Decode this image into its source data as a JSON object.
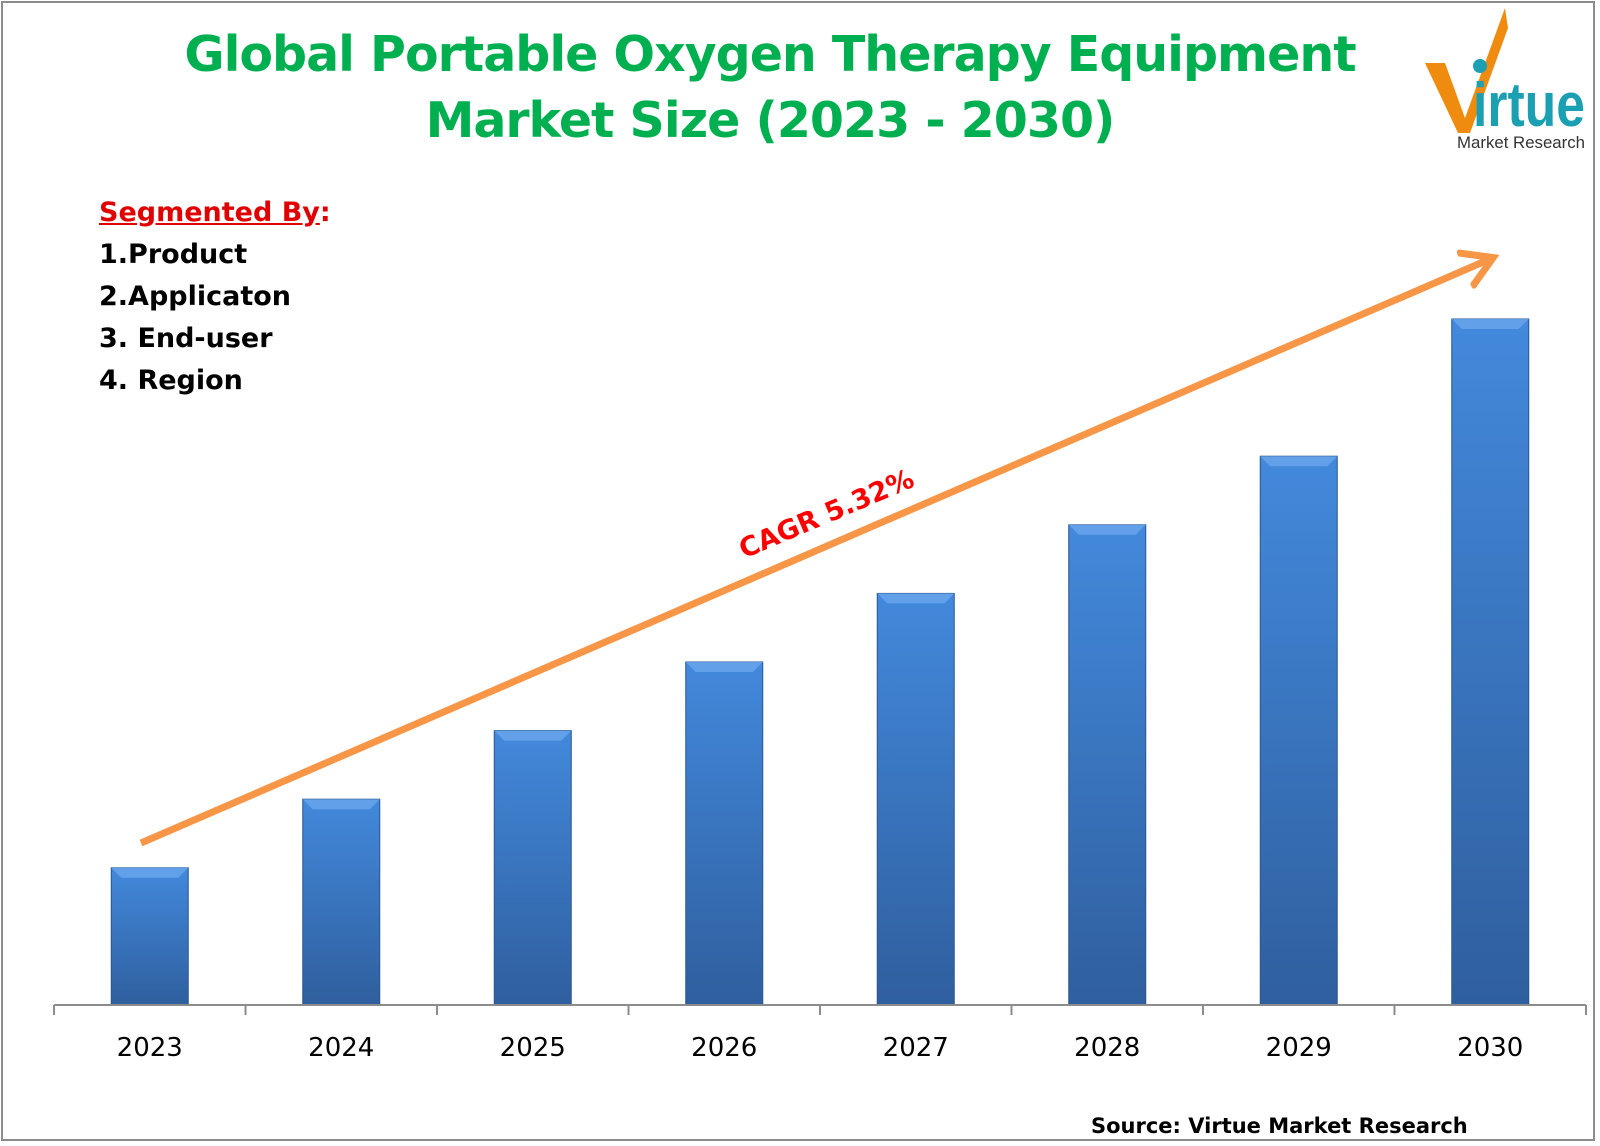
{
  "title": "Global Portable Oxygen Therapy Equipment Market Size (2023 - 2030)",
  "segmented": {
    "heading": "Segmented By",
    "colon": ":",
    "items": [
      "1.Product",
      "2.Applicaton",
      "3. End-user",
      "4. Region"
    ]
  },
  "logo": {
    "text": "Virtue",
    "subtext": "Market Research",
    "colors": {
      "v": "#ef8c10",
      "text": "#1a9fb3"
    }
  },
  "source": "Source: Virtue Market Research",
  "chart_data": {
    "type": "bar",
    "title": "Global Portable Oxygen Therapy Equipment Market Size (2023 - 2030)",
    "categories": [
      "2023",
      "2024",
      "2025",
      "2026",
      "2027",
      "2028",
      "2029",
      "2030"
    ],
    "values": [
      20,
      30,
      40,
      50,
      60,
      70,
      80,
      100
    ],
    "value_note": "relative bar heights, 2030 = 100; no value axis shown",
    "ylim": [
      0,
      100
    ],
    "grid": false,
    "bar_color": "#3a78c8",
    "annotation": {
      "text": "CAGR 5.32%",
      "color": "#ff0000",
      "arrow_color": "#f79646"
    }
  }
}
